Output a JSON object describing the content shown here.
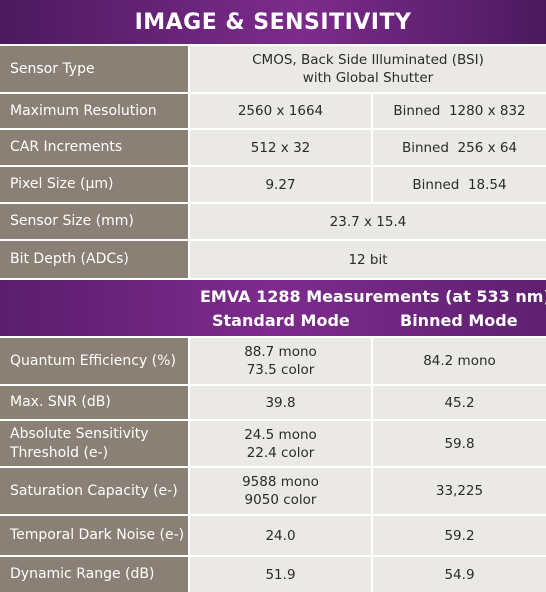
{
  "title": "IMAGE & SENSITIVITY",
  "specs": [
    {
      "label": "Sensor Type",
      "full": "CMOS, Back Side Illuminated (BSI)\nwith Global Shutter"
    },
    {
      "label": "Maximum Resolution",
      "standard": "2560 x 1664",
      "binned": "Binned  1280 x 832"
    },
    {
      "label": "CAR Increments",
      "standard": "512 x 32",
      "binned": "Binned  256 x 64"
    },
    {
      "label": "Pixel Size (µm)",
      "standard": "9.27",
      "binned": "Binned  18.54"
    },
    {
      "label": "Sensor Size (mm)",
      "full": "23.7 x 15.4"
    },
    {
      "label": "Bit Depth (ADCs)",
      "full": "12 bit"
    }
  ],
  "emva": {
    "title": "EMVA 1288 Measurements (at 533 nm)",
    "standard_label": "Standard Mode",
    "binned_label": "Binned Mode"
  },
  "measurements": [
    {
      "label": "Quantum Efficiency (%)",
      "standard": "88.7 mono\n73.5 color",
      "binned": "84.2 mono"
    },
    {
      "label": "Max. SNR (dB)",
      "standard": "39.8",
      "binned": "45.2"
    },
    {
      "label": "Absolute Sensitivity\nThreshold (e-)",
      "standard": "24.5 mono\n22.4 color",
      "binned": "59.8"
    },
    {
      "label": "Saturation Capacity (e-)",
      "standard": "9588 mono\n9050 color",
      "binned": "33,225"
    },
    {
      "label": "Temporal Dark Noise (e-)",
      "standard": "24.0",
      "binned": "59.2"
    },
    {
      "label": "Dynamic Range (dB)",
      "standard": "51.9",
      "binned": "54.9"
    }
  ]
}
